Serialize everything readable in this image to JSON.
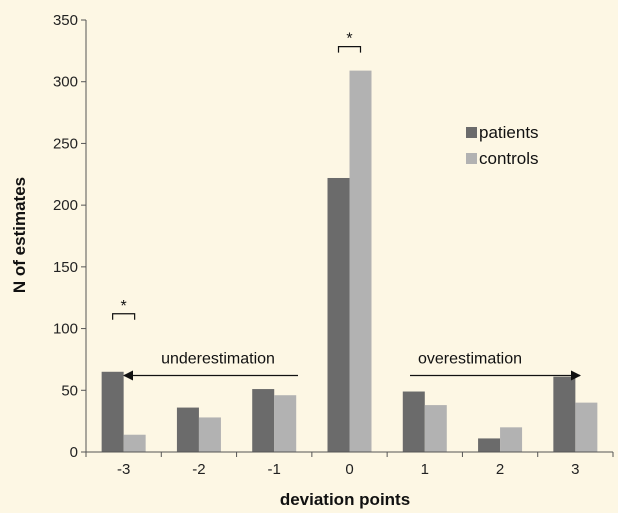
{
  "colors": {
    "background": "#fdf7e4",
    "patients": "#6b6b6b",
    "controls": "#b2b2b2"
  },
  "chart_data": {
    "type": "bar",
    "xlabel": "deviation points",
    "ylabel": "N of estimates",
    "categories": [
      "-3",
      "-2",
      "-1",
      "0",
      "1",
      "2",
      "3"
    ],
    "series": [
      {
        "name": "patients",
        "values": [
          65,
          36,
          51,
          222,
          49,
          11,
          61
        ]
      },
      {
        "name": "controls",
        "values": [
          14,
          28,
          46,
          309,
          38,
          20,
          40
        ]
      }
    ],
    "ylim": [
      0,
      350
    ],
    "yticks": [
      0,
      50,
      100,
      150,
      200,
      250,
      300,
      350
    ],
    "grid": false,
    "legend": "upper right",
    "annotations": [
      {
        "text": "underestimation",
        "arrow": "left"
      },
      {
        "text": "overestimation",
        "arrow": "right"
      }
    ],
    "significance": [
      {
        "category": "-3",
        "marker": "*"
      },
      {
        "category": "0",
        "marker": "*"
      }
    ]
  }
}
